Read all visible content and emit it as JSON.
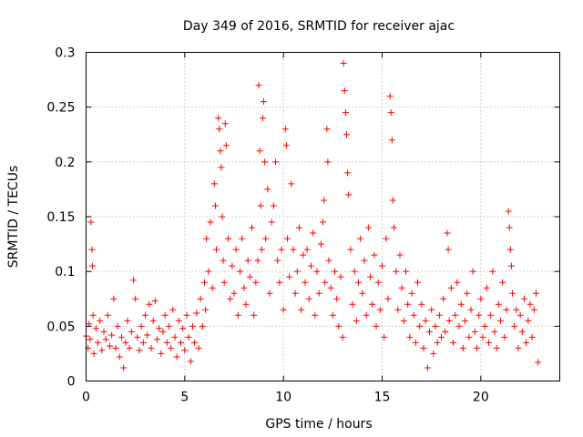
{
  "chart_data": {
    "type": "scatter",
    "title": "Day 349 of 2016, SRMTID for receiver ajac",
    "xlabel": "GPS time / hours",
    "ylabel": "SRMTID / TECUs",
    "xlim": [
      0,
      24
    ],
    "ylim": [
      0,
      0.3
    ],
    "x_ticks": [
      0,
      5,
      10,
      15,
      20
    ],
    "x_tick_labels": [
      "0",
      "5",
      "10",
      "15",
      "20"
    ],
    "y_ticks": [
      0,
      0.05,
      0.1,
      0.15,
      0.2,
      0.25,
      0.3
    ],
    "y_tick_labels": [
      "0",
      "0.05",
      "0.1",
      "0.15",
      "0.2",
      "0.25",
      "0.3"
    ],
    "grid": true,
    "marker": "+",
    "series": [
      {
        "name": "SRMTID",
        "color": "#ff0000",
        "points": [
          [
            0.0,
            0.041
          ],
          [
            0.1,
            0.03
          ],
          [
            0.15,
            0.052
          ],
          [
            0.2,
            0.038
          ],
          [
            0.25,
            0.145
          ],
          [
            0.3,
            0.12
          ],
          [
            0.32,
            0.105
          ],
          [
            0.35,
            0.06
          ],
          [
            0.4,
            0.025
          ],
          [
            0.5,
            0.048
          ],
          [
            0.6,
            0.035
          ],
          [
            0.7,
            0.055
          ],
          [
            0.8,
            0.028
          ],
          [
            0.9,
            0.045
          ],
          [
            1.0,
            0.038
          ],
          [
            1.1,
            0.06
          ],
          [
            1.2,
            0.032
          ],
          [
            1.3,
            0.042
          ],
          [
            1.4,
            0.075
          ],
          [
            1.5,
            0.03
          ],
          [
            1.6,
            0.05
          ],
          [
            1.7,
            0.022
          ],
          [
            1.8,
            0.04
          ],
          [
            1.9,
            0.012
          ],
          [
            2.0,
            0.035
          ],
          [
            2.1,
            0.055
          ],
          [
            2.2,
            0.03
          ],
          [
            2.3,
            0.045
          ],
          [
            2.4,
            0.092
          ],
          [
            2.5,
            0.075
          ],
          [
            2.6,
            0.04
          ],
          [
            2.7,
            0.028
          ],
          [
            2.8,
            0.05
          ],
          [
            2.9,
            0.035
          ],
          [
            3.0,
            0.06
          ],
          [
            3.1,
            0.042
          ],
          [
            3.2,
            0.07
          ],
          [
            3.3,
            0.03
          ],
          [
            3.4,
            0.055
          ],
          [
            3.5,
            0.073
          ],
          [
            3.6,
            0.038
          ],
          [
            3.7,
            0.048
          ],
          [
            3.8,
            0.025
          ],
          [
            3.9,
            0.045
          ],
          [
            4.0,
            0.06
          ],
          [
            4.1,
            0.035
          ],
          [
            4.2,
            0.05
          ],
          [
            4.3,
            0.03
          ],
          [
            4.4,
            0.065
          ],
          [
            4.5,
            0.04
          ],
          [
            4.6,
            0.022
          ],
          [
            4.7,
            0.055
          ],
          [
            4.8,
            0.035
          ],
          [
            4.9,
            0.048
          ],
          [
            5.0,
            0.028
          ],
          [
            5.1,
            0.06
          ],
          [
            5.2,
            0.04
          ],
          [
            5.3,
            0.018
          ],
          [
            5.4,
            0.05
          ],
          [
            5.5,
            0.035
          ],
          [
            5.6,
            0.062
          ],
          [
            5.7,
            0.03
          ],
          [
            5.8,
            0.075
          ],
          [
            5.9,
            0.05
          ],
          [
            6.0,
            0.09
          ],
          [
            6.05,
            0.065
          ],
          [
            6.1,
            0.13
          ],
          [
            6.2,
            0.1
          ],
          [
            6.3,
            0.145
          ],
          [
            6.4,
            0.085
          ],
          [
            6.5,
            0.18
          ],
          [
            6.55,
            0.16
          ],
          [
            6.6,
            0.12
          ],
          [
            6.7,
            0.24
          ],
          [
            6.75,
            0.23
          ],
          [
            6.8,
            0.21
          ],
          [
            6.85,
            0.195
          ],
          [
            6.9,
            0.15
          ],
          [
            6.95,
            0.11
          ],
          [
            7.0,
            0.09
          ],
          [
            7.05,
            0.235
          ],
          [
            7.1,
            0.215
          ],
          [
            7.2,
            0.13
          ],
          [
            7.3,
            0.075
          ],
          [
            7.4,
            0.105
          ],
          [
            7.5,
            0.08
          ],
          [
            7.6,
            0.12
          ],
          [
            7.7,
            0.06
          ],
          [
            7.8,
            0.1
          ],
          [
            7.9,
            0.13
          ],
          [
            8.0,
            0.085
          ],
          [
            8.1,
            0.07
          ],
          [
            8.2,
            0.11
          ],
          [
            8.3,
            0.095
          ],
          [
            8.4,
            0.14
          ],
          [
            8.5,
            0.06
          ],
          [
            8.6,
            0.09
          ],
          [
            8.7,
            0.11
          ],
          [
            8.75,
            0.27
          ],
          [
            8.8,
            0.21
          ],
          [
            8.85,
            0.16
          ],
          [
            8.9,
            0.12
          ],
          [
            8.95,
            0.24
          ],
          [
            9.0,
            0.255
          ],
          [
            9.05,
            0.2
          ],
          [
            9.1,
            0.13
          ],
          [
            9.2,
            0.175
          ],
          [
            9.3,
            0.08
          ],
          [
            9.4,
            0.145
          ],
          [
            9.5,
            0.16
          ],
          [
            9.6,
            0.2
          ],
          [
            9.7,
            0.11
          ],
          [
            9.8,
            0.09
          ],
          [
            9.9,
            0.12
          ],
          [
            10.0,
            0.065
          ],
          [
            10.1,
            0.23
          ],
          [
            10.15,
            0.215
          ],
          [
            10.2,
            0.13
          ],
          [
            10.3,
            0.095
          ],
          [
            10.4,
            0.18
          ],
          [
            10.5,
            0.12
          ],
          [
            10.6,
            0.08
          ],
          [
            10.7,
            0.1
          ],
          [
            10.8,
            0.14
          ],
          [
            10.9,
            0.065
          ],
          [
            11.0,
            0.115
          ],
          [
            11.1,
            0.09
          ],
          [
            11.2,
            0.12
          ],
          [
            11.3,
            0.075
          ],
          [
            11.4,
            0.105
          ],
          [
            11.5,
            0.135
          ],
          [
            11.6,
            0.06
          ],
          [
            11.7,
            0.1
          ],
          [
            11.8,
            0.08
          ],
          [
            11.9,
            0.125
          ],
          [
            12.0,
            0.145
          ],
          [
            12.05,
            0.165
          ],
          [
            12.1,
            0.09
          ],
          [
            12.2,
            0.23
          ],
          [
            12.25,
            0.2
          ],
          [
            12.3,
            0.11
          ],
          [
            12.4,
            0.085
          ],
          [
            12.5,
            0.06
          ],
          [
            12.6,
            0.1
          ],
          [
            12.7,
            0.075
          ],
          [
            12.8,
            0.05
          ],
          [
            12.9,
            0.095
          ],
          [
            13.0,
            0.04
          ],
          [
            13.05,
            0.29
          ],
          [
            13.1,
            0.265
          ],
          [
            13.15,
            0.245
          ],
          [
            13.2,
            0.225
          ],
          [
            13.25,
            0.19
          ],
          [
            13.3,
            0.17
          ],
          [
            13.4,
            0.12
          ],
          [
            13.5,
            0.07
          ],
          [
            13.6,
            0.1
          ],
          [
            13.7,
            0.055
          ],
          [
            13.8,
            0.09
          ],
          [
            13.9,
            0.13
          ],
          [
            14.0,
            0.08
          ],
          [
            14.1,
            0.11
          ],
          [
            14.2,
            0.06
          ],
          [
            14.3,
            0.14
          ],
          [
            14.4,
            0.095
          ],
          [
            14.5,
            0.07
          ],
          [
            14.6,
            0.115
          ],
          [
            14.7,
            0.05
          ],
          [
            14.8,
            0.09
          ],
          [
            14.9,
            0.065
          ],
          [
            15.0,
            0.105
          ],
          [
            15.1,
            0.04
          ],
          [
            15.2,
            0.13
          ],
          [
            15.3,
            0.075
          ],
          [
            15.4,
            0.26
          ],
          [
            15.45,
            0.245
          ],
          [
            15.5,
            0.22
          ],
          [
            15.55,
            0.165
          ],
          [
            15.6,
            0.14
          ],
          [
            15.7,
            0.1
          ],
          [
            15.8,
            0.065
          ],
          [
            15.9,
            0.115
          ],
          [
            16.0,
            0.085
          ],
          [
            16.1,
            0.055
          ],
          [
            16.2,
            0.1
          ],
          [
            16.3,
            0.07
          ],
          [
            16.4,
            0.04
          ],
          [
            16.5,
            0.08
          ],
          [
            16.6,
            0.06
          ],
          [
            16.7,
            0.035
          ],
          [
            16.8,
            0.09
          ],
          [
            16.9,
            0.05
          ],
          [
            17.0,
            0.07
          ],
          [
            17.1,
            0.03
          ],
          [
            17.2,
            0.055
          ],
          [
            17.3,
            0.012
          ],
          [
            17.4,
            0.045
          ],
          [
            17.5,
            0.065
          ],
          [
            17.6,
            0.025
          ],
          [
            17.7,
            0.05
          ],
          [
            17.8,
            0.035
          ],
          [
            17.9,
            0.06
          ],
          [
            18.0,
            0.04
          ],
          [
            18.1,
            0.075
          ],
          [
            18.2,
            0.045
          ],
          [
            18.3,
            0.135
          ],
          [
            18.35,
            0.12
          ],
          [
            18.4,
            0.055
          ],
          [
            18.5,
            0.085
          ],
          [
            18.6,
            0.035
          ],
          [
            18.7,
            0.06
          ],
          [
            18.8,
            0.09
          ],
          [
            18.9,
            0.05
          ],
          [
            19.0,
            0.07
          ],
          [
            19.1,
            0.03
          ],
          [
            19.2,
            0.055
          ],
          [
            19.3,
            0.08
          ],
          [
            19.4,
            0.04
          ],
          [
            19.5,
            0.065
          ],
          [
            19.6,
            0.1
          ],
          [
            19.7,
            0.045
          ],
          [
            19.8,
            0.03
          ],
          [
            19.9,
            0.06
          ],
          [
            20.0,
            0.075
          ],
          [
            20.1,
            0.04
          ],
          [
            20.2,
            0.05
          ],
          [
            20.3,
            0.085
          ],
          [
            20.4,
            0.035
          ],
          [
            20.5,
            0.06
          ],
          [
            20.6,
            0.1
          ],
          [
            20.7,
            0.045
          ],
          [
            20.8,
            0.03
          ],
          [
            20.9,
            0.07
          ],
          [
            21.0,
            0.055
          ],
          [
            21.1,
            0.09
          ],
          [
            21.2,
            0.04
          ],
          [
            21.3,
            0.065
          ],
          [
            21.4,
            0.155
          ],
          [
            21.45,
            0.14
          ],
          [
            21.5,
            0.12
          ],
          [
            21.55,
            0.105
          ],
          [
            21.6,
            0.08
          ],
          [
            21.7,
            0.05
          ],
          [
            21.8,
            0.065
          ],
          [
            21.9,
            0.03
          ],
          [
            22.0,
            0.06
          ],
          [
            22.1,
            0.045
          ],
          [
            22.2,
            0.075
          ],
          [
            22.3,
            0.035
          ],
          [
            22.4,
            0.055
          ],
          [
            22.5,
            0.07
          ],
          [
            22.6,
            0.04
          ],
          [
            22.7,
            0.065
          ],
          [
            22.8,
            0.08
          ],
          [
            22.9,
            0.017
          ]
        ]
      }
    ]
  }
}
